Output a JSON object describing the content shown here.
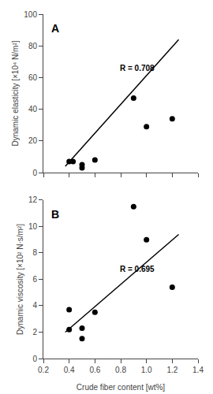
{
  "chart_data": [
    {
      "type": "scatter",
      "ylabel": "Dynamic elasticity [×10⁴ N/m²]",
      "xlim": [
        0.2,
        1.4
      ],
      "xticks": [
        0.2,
        0.4,
        0.6,
        0.8,
        1.0,
        1.2,
        1.4
      ],
      "ylim": [
        0,
        100
      ],
      "yticks": [
        0,
        20,
        40,
        60,
        80,
        100
      ],
      "grid": false,
      "tick_labels": "y",
      "series": [
        {
          "type": "line",
          "color": "black",
          "line_style": "solid",
          "x": [
            0.37,
            1.25
          ],
          "values": [
            4.0,
            84.0
          ]
        },
        {
          "type": "scatter",
          "color": "black",
          "marker": "circle",
          "x": [
            0.4,
            0.43,
            0.5,
            0.5,
            0.6,
            0.9,
            1.0,
            1.2
          ],
          "values": [
            7.0,
            7.0,
            5.0,
            3.0,
            8.0,
            47.0,
            29.0,
            34.0
          ]
        }
      ],
      "annotations": [
        {
          "text": "R = 0.708",
          "x": 0.78,
          "y": 66
        },
        {
          "text": "A",
          "x": 0.25,
          "y": 96
        }
      ]
    },
    {
      "type": "scatter",
      "ylabel": "Dynamic viscosity [×10² N·s/m²]",
      "xlabel": "Crude fiber content [wt%]",
      "xlim": [
        0.2,
        1.4
      ],
      "xticks": [
        0.2,
        0.4,
        0.6,
        0.8,
        {
          "value": 1.0,
          "label": "1.0"
        },
        1.2,
        1.4
      ],
      "ylim": [
        0,
        12
      ],
      "yticks": [
        0,
        2,
        4,
        6,
        8,
        10,
        12
      ],
      "grid": false,
      "series": [
        {
          "type": "line",
          "color": "black",
          "line_style": "solid",
          "x": [
            0.37,
            1.25
          ],
          "values": [
            2.0,
            9.4
          ]
        },
        {
          "type": "scatter",
          "color": "black",
          "marker": "circle",
          "x": [
            0.4,
            0.4,
            0.5,
            0.5,
            0.6,
            0.9,
            1.0,
            1.2
          ],
          "values": [
            2.2,
            3.7,
            1.5,
            2.3,
            3.5,
            11.5,
            9.0,
            5.4
          ]
        }
      ],
      "annotations": [
        {
          "text": "R = 0.695",
          "x": 0.78,
          "y": 6.8
        },
        {
          "text": "B",
          "x": 0.25,
          "y": 11.52
        }
      ]
    }
  ]
}
